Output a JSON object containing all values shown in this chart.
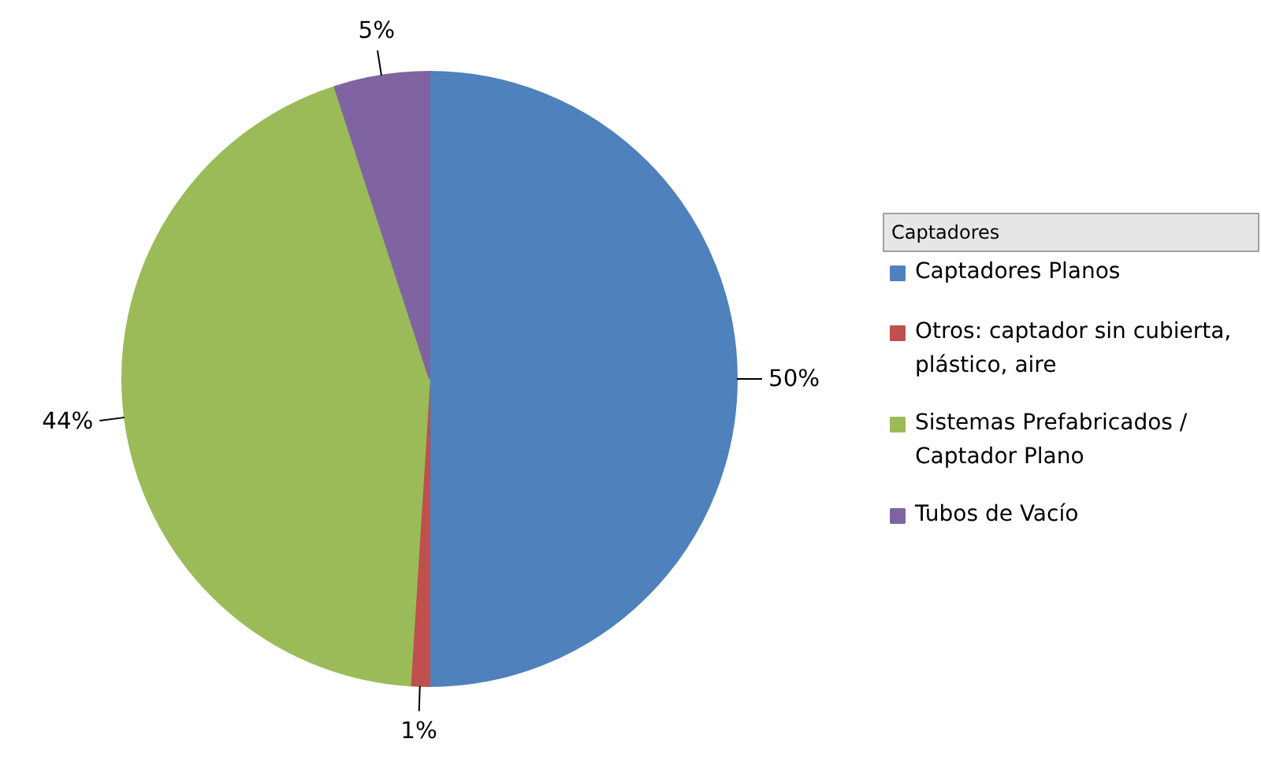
{
  "chart_data": {
    "type": "pie",
    "legend_title": "Captadores",
    "legend": "right",
    "categories": [
      "Captadores Planos",
      "Otros: captador sin cubierta, plástico, aire",
      "Sistemas Prefabricados / Captador Plano",
      "Tubos de Vacío"
    ],
    "values": [
      50,
      1,
      44,
      5
    ],
    "colors": [
      "#4f81bd",
      "#c0504d",
      "#9bbb59",
      "#8064a2"
    ],
    "value_labels": [
      "50%",
      "1%",
      "44%",
      "5%"
    ]
  }
}
